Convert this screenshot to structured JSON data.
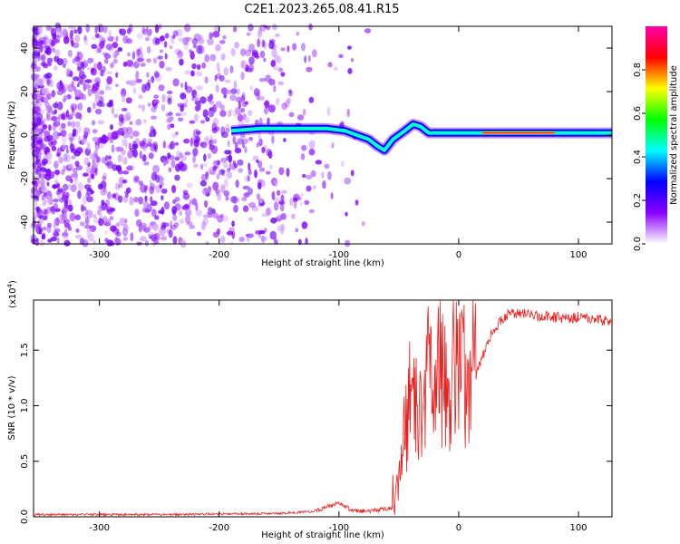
{
  "title": "C2E1.2023.265.08.41.R15",
  "chart_data": [
    {
      "type": "heatmap",
      "xlabel": "Height of straight line (km)",
      "ylabel": "Frequency (Hz)",
      "xlim": [
        -355,
        128
      ],
      "ylim": [
        -50,
        50
      ],
      "xticks": [
        -300,
        -200,
        -100,
        0,
        100
      ],
      "yticks": [
        -40,
        -20,
        0,
        20,
        40
      ],
      "grid": false,
      "colorbar": {
        "label": "Normalized spectral amplitude",
        "range": [
          0.0,
          1.0
        ],
        "ticks": [
          "0.0",
          "0.2",
          "0.4",
          "0.6",
          "0.8"
        ],
        "colors": [
          "#ffffff",
          "#8a00ff",
          "#0000ff",
          "#00ffff",
          "#00ff00",
          "#ffff00",
          "#ff0000",
          "#ff00aa"
        ]
      },
      "ridge": {
        "x": [
          -190,
          -165,
          -140,
          -125,
          -110,
          -95,
          -85,
          -75,
          -68,
          -62,
          -55,
          -45,
          -38,
          -32,
          -25,
          -15,
          0,
          20,
          40,
          60,
          80,
          100,
          128
        ],
        "y": [
          2,
          3,
          3,
          3,
          3,
          2,
          0,
          -2,
          -5,
          -7,
          -2,
          2,
          5,
          4,
          1,
          1,
          1,
          1,
          1,
          1,
          1,
          1,
          1
        ]
      }
    },
    {
      "type": "line",
      "xlabel": "Height of straight line (km)",
      "ylabel": "SNR (10 * v/v)",
      "scale_label": "(x10",
      "scale_exp": "4",
      "scale_close": ")",
      "xlim": [
        -355,
        128
      ],
      "ylim": [
        0,
        1.95
      ],
      "xticks": [
        -300,
        -200,
        -100,
        0,
        100
      ],
      "yticks": [
        "0.0",
        "0.5",
        "1.0",
        "1.5"
      ],
      "color": "#e8201e",
      "series": [
        {
          "x": [
            -355,
            -300,
            -250,
            -200,
            -150,
            -120,
            -110,
            -100,
            -90,
            -75,
            -55,
            -50,
            -45,
            -40,
            -35,
            -30,
            -25,
            -20,
            -15,
            -10,
            -5,
            0,
            5,
            10,
            15,
            20,
            25,
            30,
            40,
            50,
            60,
            70,
            80,
            90,
            100,
            110,
            128
          ],
          "y": [
            0.02,
            0.02,
            0.02,
            0.025,
            0.03,
            0.05,
            0.09,
            0.12,
            0.06,
            0.05,
            0.08,
            0.3,
            0.8,
            1.1,
            1.2,
            0.7,
            1.3,
            1.1,
            1.4,
            1.0,
            1.5,
            1.2,
            1.3,
            1.4,
            1.3,
            1.45,
            1.6,
            1.7,
            1.82,
            1.83,
            1.82,
            1.8,
            1.8,
            1.79,
            1.8,
            1.78,
            1.76
          ]
        }
      ]
    }
  ]
}
